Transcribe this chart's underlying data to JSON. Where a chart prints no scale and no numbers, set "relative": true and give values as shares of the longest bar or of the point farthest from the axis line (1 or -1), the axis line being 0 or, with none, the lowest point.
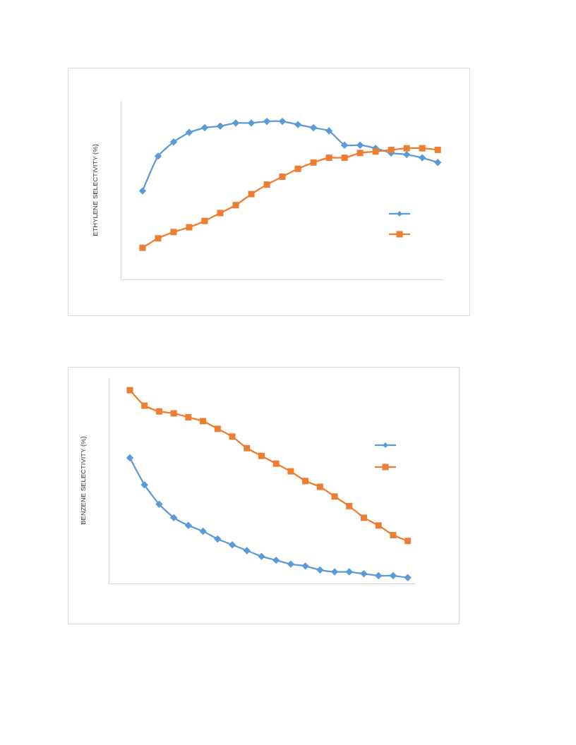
{
  "chart_data": [
    {
      "type": "line",
      "ylabel": "ETHYLENE SELECTIVITY (%)",
      "relative": true,
      "grid": false,
      "categories": [
        null,
        null,
        null,
        null,
        null,
        null,
        null,
        null,
        null,
        null,
        null,
        null,
        null,
        null,
        null,
        null,
        null,
        null,
        null,
        null
      ],
      "series": [
        {
          "color": "#5b9bd5",
          "marker": "diamond",
          "values": [
            0.56,
            0.78,
            0.87,
            0.93,
            0.96,
            0.97,
            0.99,
            0.99,
            1,
            1,
            0.98,
            0.96,
            0.94,
            0.85,
            0.85,
            0.83,
            0.8,
            0.79,
            0.77,
            0.74
          ]
        },
        {
          "color": "#ed7d31",
          "marker": "square",
          "values": [
            0.2,
            0.26,
            0.3,
            0.33,
            0.37,
            0.42,
            0.47,
            0.54,
            0.6,
            0.65,
            0.7,
            0.74,
            0.77,
            0.77,
            0.8,
            0.81,
            0.82,
            0.83,
            0.83,
            0.82
          ]
        }
      ]
    },
    {
      "type": "line",
      "ylabel": "BENZENE SELECTIVITY (%)",
      "relative": true,
      "grid": false,
      "categories": [
        null,
        null,
        null,
        null,
        null,
        null,
        null,
        null,
        null,
        null,
        null,
        null,
        null,
        null,
        null,
        null,
        null,
        null,
        null,
        null
      ],
      "series": [
        {
          "color": "#5b9bd5",
          "marker": "diamond",
          "values": [
            0.65,
            0.51,
            0.41,
            0.34,
            0.3,
            0.27,
            0.23,
            0.2,
            0.17,
            0.14,
            0.12,
            0.1,
            0.09,
            0.07,
            0.06,
            0.06,
            0.05,
            0.04,
            0.04,
            0.03
          ]
        },
        {
          "color": "#ed7d31",
          "marker": "square",
          "values": [
            1,
            0.92,
            0.89,
            0.88,
            0.86,
            0.84,
            0.8,
            0.76,
            0.7,
            0.66,
            0.62,
            0.58,
            0.53,
            0.5,
            0.45,
            0.4,
            0.34,
            0.3,
            0.25,
            0.22
          ]
        }
      ]
    }
  ]
}
